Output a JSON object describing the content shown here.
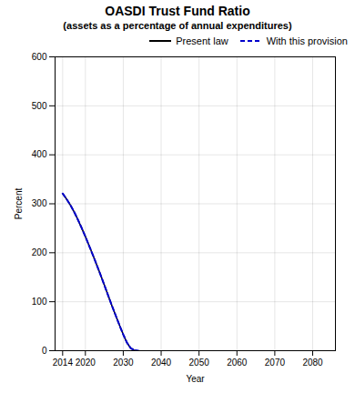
{
  "chart_data": {
    "type": "line",
    "title": "OASDI Trust Fund Ratio",
    "subtitle": "(assets as a percentage of annual expenditures)",
    "xlabel": "Year",
    "ylabel": "Percent",
    "x": [
      2014,
      2015,
      2016,
      2017,
      2018,
      2019,
      2020,
      2021,
      2022,
      2023,
      2024,
      2025,
      2026,
      2027,
      2028,
      2029,
      2030,
      2031,
      2032,
      2033,
      2034
    ],
    "series": [
      {
        "name": "Present law",
        "color": "#000000",
        "line_style": "solid",
        "values": [
          321,
          310,
          298,
          284,
          268,
          251,
          233,
          214,
          195,
          175,
          155,
          134,
          113,
          92,
          72,
          52,
          33,
          16,
          5,
          0,
          null
        ]
      },
      {
        "name": "With this provision",
        "color": "#0000CC",
        "line_style": "dashed",
        "values": [
          321,
          310,
          298,
          284,
          268,
          251,
          233,
          214,
          195,
          175,
          155,
          134,
          113,
          92,
          72,
          52,
          33,
          16,
          5,
          1,
          0
        ]
      }
    ],
    "xlim": [
      2012,
      2086
    ],
    "xticks": [
      2014,
      2020,
      2030,
      2040,
      2050,
      2060,
      2070,
      2080
    ],
    "ylim": [
      0,
      600
    ],
    "yticks": [
      0,
      100,
      200,
      300,
      400,
      500,
      600
    ],
    "grid": true,
    "legend": "upper right"
  }
}
